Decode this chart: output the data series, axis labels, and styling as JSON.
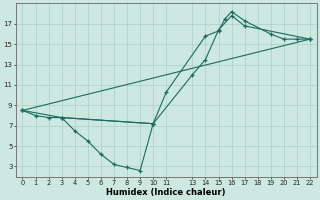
{
  "xlabel": "Humidex (Indice chaleur)",
  "bg_color": "#cce8e0",
  "grid_color": "#aacfc7",
  "line_color": "#1a6b5e",
  "xlim": [
    -0.5,
    22.5
  ],
  "ylim": [
    2.0,
    19.0
  ],
  "xticks": [
    0,
    1,
    2,
    3,
    4,
    5,
    6,
    7,
    8,
    9,
    10,
    11,
    13,
    14,
    15,
    16,
    17,
    18,
    19,
    20,
    21,
    22
  ],
  "yticks": [
    3,
    5,
    7,
    9,
    11,
    13,
    15,
    17
  ],
  "line1_x": [
    0,
    1,
    2,
    3,
    10,
    11,
    14,
    15,
    15.5,
    16,
    17,
    19,
    20,
    21,
    22
  ],
  "line1_y": [
    8.5,
    8.0,
    7.8,
    7.8,
    7.2,
    10.3,
    15.8,
    16.3,
    17.5,
    18.2,
    17.3,
    16.0,
    15.5,
    15.5,
    15.5
  ],
  "line2_x": [
    0,
    3,
    10,
    13,
    14,
    15,
    16,
    17,
    22
  ],
  "line2_y": [
    8.5,
    7.8,
    7.2,
    12.0,
    13.5,
    16.4,
    17.8,
    16.8,
    15.5
  ],
  "line3_x": [
    3,
    4,
    5,
    6,
    7,
    8,
    9,
    10
  ],
  "line3_y": [
    7.8,
    6.5,
    5.5,
    4.2,
    3.2,
    2.9,
    2.6,
    7.2
  ],
  "line4_x": [
    0,
    22
  ],
  "line4_y": [
    8.5,
    15.5
  ]
}
